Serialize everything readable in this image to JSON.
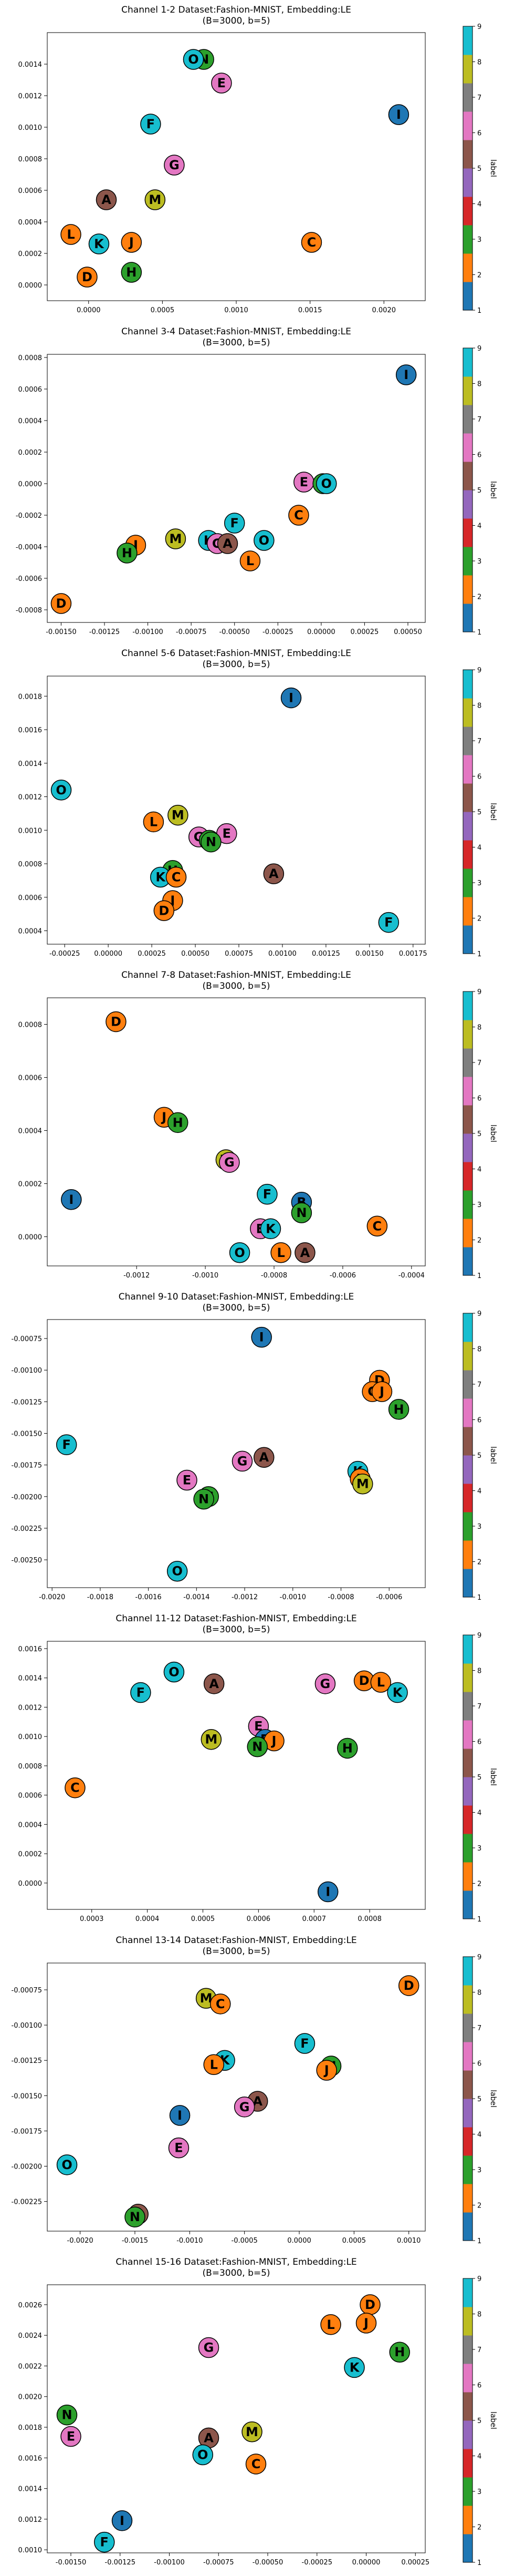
{
  "chart_data": [
    {
      "type": "scatter",
      "title": "Channel 1-2 Dataset:Fashion-MNIST, Embedding:LE",
      "subtitle": "(B=3000, b=5)",
      "xticks": [
        "0.0000",
        "0.0005",
        "0.0010",
        "0.0015",
        "0.0020"
      ],
      "yticks": [
        "0.0000",
        "0.0002",
        "0.0004",
        "0.0006",
        "0.0008",
        "0.0010",
        "0.0012",
        "0.0014"
      ],
      "xlim": [
        -0.00028,
        0.00228
      ],
      "ylim": [
        -0.0001,
        0.0016
      ],
      "points": [
        {
          "label": "N",
          "x": 0.00078,
          "y": 0.00143,
          "color": "#2ca02c"
        },
        {
          "label": "O",
          "x": 0.00071,
          "y": 0.00143,
          "color": "#17becf"
        },
        {
          "label": "E",
          "x": 0.0009,
          "y": 0.00128,
          "color": "#e377c2"
        },
        {
          "label": "I",
          "x": 0.0021,
          "y": 0.00108,
          "color": "#1f77b4"
        },
        {
          "label": "F",
          "x": 0.00042,
          "y": 0.00102,
          "color": "#17becf"
        },
        {
          "label": "G",
          "x": 0.00058,
          "y": 0.00076,
          "color": "#e377c2"
        },
        {
          "label": "A",
          "x": 0.00012,
          "y": 0.00054,
          "color": "#8c564b"
        },
        {
          "label": "M",
          "x": 0.00045,
          "y": 0.00054,
          "color": "#bcbd22"
        },
        {
          "label": "L",
          "x": -0.00012,
          "y": 0.00032,
          "color": "#ff7f0e"
        },
        {
          "label": "K",
          "x": 7e-05,
          "y": 0.00026,
          "color": "#17becf"
        },
        {
          "label": "J",
          "x": 0.00029,
          "y": 0.00027,
          "color": "#ff7f0e"
        },
        {
          "label": "C",
          "x": 0.00151,
          "y": 0.00027,
          "color": "#ff7f0e"
        },
        {
          "label": "H",
          "x": 0.00029,
          "y": 8e-05,
          "color": "#2ca02c"
        },
        {
          "label": "D",
          "x": -1e-05,
          "y": 5e-05,
          "color": "#ff7f0e"
        }
      ]
    },
    {
      "type": "scatter",
      "title": "Channel 3-4 Dataset:Fashion-MNIST, Embedding:LE",
      "subtitle": "(B=3000, b=5)",
      "xticks": [
        "-0.00150",
        "-0.00125",
        "-0.00100",
        "-0.00075",
        "-0.00050",
        "-0.00025",
        "0.00000",
        "0.00025",
        "0.00050"
      ],
      "yticks": [
        "-0.0008",
        "-0.0006",
        "-0.0004",
        "-0.0002",
        "0.0000",
        "0.0002",
        "0.0004",
        "0.0006",
        "0.0008"
      ],
      "xlim": [
        -0.00158,
        0.0006
      ],
      "ylim": [
        -0.00088,
        0.00082
      ],
      "points": [
        {
          "label": "I",
          "x": 0.00049,
          "y": 0.00069,
          "color": "#1f77b4"
        },
        {
          "label": "E",
          "x": -0.0001,
          "y": 1e-05,
          "color": "#e377c2"
        },
        {
          "label": "N",
          "x": 1e-05,
          "y": 0.0,
          "color": "#2ca02c"
        },
        {
          "label": "O",
          "x": 3e-05,
          "y": 0.0,
          "color": "#17becf"
        },
        {
          "label": "C",
          "x": -0.00013,
          "y": -0.0002,
          "color": "#ff7f0e"
        },
        {
          "label": "F",
          "x": -0.0005,
          "y": -0.00025,
          "color": "#17becf"
        },
        {
          "label": "O",
          "x": -0.00033,
          "y": -0.00036,
          "color": "#17becf"
        },
        {
          "label": "M",
          "x": -0.00084,
          "y": -0.00035,
          "color": "#bcbd22"
        },
        {
          "label": "K",
          "x": -0.00065,
          "y": -0.00036,
          "color": "#17becf"
        },
        {
          "label": "G",
          "x": -0.0006,
          "y": -0.00038,
          "color": "#e377c2"
        },
        {
          "label": "A",
          "x": -0.00054,
          "y": -0.00038,
          "color": "#8c564b"
        },
        {
          "label": "J",
          "x": -0.00107,
          "y": -0.00039,
          "color": "#ff7f0e"
        },
        {
          "label": "H",
          "x": -0.00112,
          "y": -0.00044,
          "color": "#2ca02c"
        },
        {
          "label": "L",
          "x": -0.00041,
          "y": -0.00049,
          "color": "#ff7f0e"
        },
        {
          "label": "D",
          "x": -0.0015,
          "y": -0.00076,
          "color": "#ff7f0e"
        }
      ]
    },
    {
      "type": "scatter",
      "title": "Channel 5-6 Dataset:Fashion-MNIST, Embedding:LE",
      "subtitle": "(B=3000, b=5)",
      "xticks": [
        "-0.00025",
        "0.00000",
        "0.00025",
        "0.00050",
        "0.00075",
        "0.00100",
        "0.00125",
        "0.00150",
        "0.00175"
      ],
      "yticks": [
        "0.0004",
        "0.0006",
        "0.0008",
        "0.0010",
        "0.0012",
        "0.0014",
        "0.0016",
        "0.0018"
      ],
      "xlim": [
        -0.00035,
        0.00182
      ],
      "ylim": [
        0.00032,
        0.00192
      ],
      "points": [
        {
          "label": "I",
          "x": 0.00105,
          "y": 0.00179,
          "color": "#1f77b4"
        },
        {
          "label": "O",
          "x": -0.00027,
          "y": 0.00124,
          "color": "#17becf"
        },
        {
          "label": "L",
          "x": 0.00026,
          "y": 0.00105,
          "color": "#ff7f0e"
        },
        {
          "label": "M",
          "x": 0.0004,
          "y": 0.00109,
          "color": "#bcbd22"
        },
        {
          "label": "E",
          "x": 0.00068,
          "y": 0.00098,
          "color": "#e377c2"
        },
        {
          "label": "G",
          "x": 0.00052,
          "y": 0.00096,
          "color": "#e377c2"
        },
        {
          "label": "B",
          "x": 0.00058,
          "y": 0.00094,
          "color": "#2ca02c"
        },
        {
          "label": "N",
          "x": 0.00059,
          "y": 0.00093,
          "color": "#2ca02c"
        },
        {
          "label": "H",
          "x": 0.00037,
          "y": 0.00076,
          "color": "#2ca02c"
        },
        {
          "label": "A",
          "x": 0.00095,
          "y": 0.00074,
          "color": "#8c564b"
        },
        {
          "label": "K",
          "x": 0.0003,
          "y": 0.00072,
          "color": "#17becf"
        },
        {
          "label": "C",
          "x": 0.00039,
          "y": 0.00072,
          "color": "#ff7f0e"
        },
        {
          "label": "J",
          "x": 0.00037,
          "y": 0.00058,
          "color": "#ff7f0e"
        },
        {
          "label": "D",
          "x": 0.00032,
          "y": 0.00052,
          "color": "#ff7f0e"
        },
        {
          "label": "F",
          "x": 0.00161,
          "y": 0.00045,
          "color": "#17becf"
        }
      ]
    },
    {
      "type": "scatter",
      "title": "Channel 7-8 Dataset:Fashion-MNIST, Embedding:LE",
      "subtitle": "(B=3000, b=5)",
      "xticks": [
        "-0.0012",
        "-0.0010",
        "-0.0008",
        "-0.0006",
        "-0.0004"
      ],
      "yticks": [
        "0.0000",
        "0.0002",
        "0.0004",
        "0.0006",
        "0.0008"
      ],
      "xlim": [
        -0.00146,
        -0.00036
      ],
      "ylim": [
        -0.00011,
        0.0009
      ],
      "points": [
        {
          "label": "D",
          "x": -0.00126,
          "y": 0.00081,
          "color": "#ff7f0e"
        },
        {
          "label": "J",
          "x": -0.00112,
          "y": 0.00045,
          "color": "#ff7f0e"
        },
        {
          "label": "H",
          "x": -0.00108,
          "y": 0.00043,
          "color": "#2ca02c"
        },
        {
          "label": "M",
          "x": -0.00094,
          "y": 0.00029,
          "color": "#bcbd22"
        },
        {
          "label": "G",
          "x": -0.00093,
          "y": 0.00028,
          "color": "#e377c2"
        },
        {
          "label": "I",
          "x": -0.00139,
          "y": 0.00014,
          "color": "#1f77b4"
        },
        {
          "label": "F",
          "x": -0.00082,
          "y": 0.00016,
          "color": "#17becf"
        },
        {
          "label": "B",
          "x": -0.00072,
          "y": 0.00013,
          "color": "#1f77b4"
        },
        {
          "label": "N",
          "x": -0.00072,
          "y": 9e-05,
          "color": "#2ca02c"
        },
        {
          "label": "C",
          "x": -0.0005,
          "y": 4e-05,
          "color": "#ff7f0e"
        },
        {
          "label": "E",
          "x": -0.00084,
          "y": 3e-05,
          "color": "#e377c2"
        },
        {
          "label": "K",
          "x": -0.00081,
          "y": 3e-05,
          "color": "#17becf"
        },
        {
          "label": "O",
          "x": -0.0009,
          "y": -6e-05,
          "color": "#17becf"
        },
        {
          "label": "L",
          "x": -0.00078,
          "y": -6e-05,
          "color": "#ff7f0e"
        },
        {
          "label": "A",
          "x": -0.00071,
          "y": -6e-05,
          "color": "#8c564b"
        }
      ]
    },
    {
      "type": "scatter",
      "title": "Channel 9-10 Dataset:Fashion-MNIST, Embedding:LE",
      "subtitle": "(B=3000, b=5)",
      "xticks": [
        "-0.0020",
        "-0.0018",
        "-0.0016",
        "-0.0014",
        "-0.0012",
        "-0.0010",
        "-0.0008",
        "-0.0006",
        "-0.0004"
      ],
      "yticks": [
        "-0.00250",
        "-0.00225",
        "-0.00200",
        "-0.00175",
        "-0.00150",
        "-0.00125",
        "-0.00100",
        "-0.00075"
      ],
      "xlim": [
        -0.00202,
        -0.00045
      ],
      "ylim": [
        -0.00272,
        -0.0006
      ],
      "points": [
        {
          "label": "I",
          "x": -0.00113,
          "y": -0.00074,
          "color": "#1f77b4"
        },
        {
          "label": "D",
          "x": -0.00064,
          "y": -0.00108,
          "color": "#ff7f0e"
        },
        {
          "label": "C",
          "x": -0.00067,
          "y": -0.00117,
          "color": "#ff7f0e"
        },
        {
          "label": "J",
          "x": -0.00063,
          "y": -0.00117,
          "color": "#ff7f0e"
        },
        {
          "label": "H",
          "x": -0.00056,
          "y": -0.00131,
          "color": "#2ca02c"
        },
        {
          "label": "F",
          "x": -0.00194,
          "y": -0.00159,
          "color": "#17becf"
        },
        {
          "label": "G",
          "x": -0.00121,
          "y": -0.00172,
          "color": "#e377c2"
        },
        {
          "label": "A",
          "x": -0.00112,
          "y": -0.00169,
          "color": "#8c564b"
        },
        {
          "label": "K",
          "x": -0.00073,
          "y": -0.0018,
          "color": "#17becf"
        },
        {
          "label": "E",
          "x": -0.00144,
          "y": -0.00187,
          "color": "#e377c2"
        },
        {
          "label": "L",
          "x": -0.00072,
          "y": -0.00186,
          "color": "#ff7f0e"
        },
        {
          "label": "M",
          "x": -0.00071,
          "y": -0.0019,
          "color": "#bcbd22"
        },
        {
          "label": "H",
          "x": -0.00135,
          "y": -0.002,
          "color": "#2ca02c"
        },
        {
          "label": "N",
          "x": -0.00137,
          "y": -0.00202,
          "color": "#2ca02c"
        },
        {
          "label": "O",
          "x": -0.00148,
          "y": -0.00259,
          "color": "#17becf"
        }
      ]
    },
    {
      "type": "scatter",
      "title": "Channel 11-12 Dataset:Fashion-MNIST, Embedding:LE",
      "subtitle": "(B=3000, b=5)",
      "xticks": [
        "0.0003",
        "0.0004",
        "0.0005",
        "0.0006",
        "0.0007",
        "0.0008"
      ],
      "yticks": [
        "0.0000",
        "0.0002",
        "0.0004",
        "0.0006",
        "0.0008",
        "0.0010",
        "0.0012",
        "0.0014",
        "0.0016"
      ],
      "xlim": [
        0.00022,
        0.0009
      ],
      "ylim": [
        -0.00018,
        0.00165
      ],
      "points": [
        {
          "label": "O",
          "x": 0.000448,
          "y": 0.00144,
          "color": "#17becf"
        },
        {
          "label": "F",
          "x": 0.000388,
          "y": 0.0013,
          "color": "#17becf"
        },
        {
          "label": "A",
          "x": 0.00052,
          "y": 0.00136,
          "color": "#8c564b"
        },
        {
          "label": "G",
          "x": 0.00072,
          "y": 0.00136,
          "color": "#e377c2"
        },
        {
          "label": "D",
          "x": 0.00079,
          "y": 0.00138,
          "color": "#ff7f0e"
        },
        {
          "label": "L",
          "x": 0.00082,
          "y": 0.00137,
          "color": "#ff7f0e"
        },
        {
          "label": "K",
          "x": 0.00085,
          "y": 0.0013,
          "color": "#17becf"
        },
        {
          "label": "E",
          "x": 0.0006,
          "y": 0.00107,
          "color": "#e377c2"
        },
        {
          "label": "M",
          "x": 0.000515,
          "y": 0.00098,
          "color": "#bcbd22"
        },
        {
          "label": "B",
          "x": 0.000612,
          "y": 0.00098,
          "color": "#1f77b4"
        },
        {
          "label": "J",
          "x": 0.000628,
          "y": 0.00097,
          "color": "#ff7f0e"
        },
        {
          "label": "N",
          "x": 0.000598,
          "y": 0.00093,
          "color": "#2ca02c"
        },
        {
          "label": "H",
          "x": 0.00076,
          "y": 0.00092,
          "color": "#2ca02c"
        },
        {
          "label": "C",
          "x": 0.00027,
          "y": 0.00065,
          "color": "#ff7f0e"
        },
        {
          "label": "I",
          "x": 0.000725,
          "y": -6e-05,
          "color": "#1f77b4"
        }
      ]
    },
    {
      "type": "scatter",
      "title": "Channel 13-14 Dataset:Fashion-MNIST, Embedding:LE",
      "subtitle": "(B=3000, b=5)",
      "xticks": [
        "-0.0020",
        "-0.0015",
        "-0.0010",
        "-0.0005",
        "0.0000",
        "0.0005",
        "0.0010"
      ],
      "yticks": [
        "-0.00225",
        "-0.00200",
        "-0.00175",
        "-0.00150",
        "-0.00125",
        "-0.00100",
        "-0.00075"
      ],
      "xlim": [
        -0.0023,
        0.00115
      ],
      "ylim": [
        -0.00246,
        -0.00056
      ],
      "points": [
        {
          "label": "D",
          "x": 0.001,
          "y": -0.00072,
          "color": "#ff7f0e"
        },
        {
          "label": "M",
          "x": -0.00085,
          "y": -0.00081,
          "color": "#bcbd22"
        },
        {
          "label": "C",
          "x": -0.00072,
          "y": -0.00085,
          "color": "#ff7f0e"
        },
        {
          "label": "F",
          "x": 5e-05,
          "y": -0.00113,
          "color": "#17becf"
        },
        {
          "label": "K",
          "x": -0.00068,
          "y": -0.00125,
          "color": "#17becf"
        },
        {
          "label": "L",
          "x": -0.00078,
          "y": -0.00128,
          "color": "#ff7f0e"
        },
        {
          "label": "H",
          "x": 0.00029,
          "y": -0.00129,
          "color": "#2ca02c"
        },
        {
          "label": "J",
          "x": 0.00025,
          "y": -0.00132,
          "color": "#ff7f0e"
        },
        {
          "label": "A",
          "x": -0.00038,
          "y": -0.00154,
          "color": "#8c564b"
        },
        {
          "label": "G",
          "x": -0.0005,
          "y": -0.00158,
          "color": "#e377c2"
        },
        {
          "label": "I",
          "x": -0.00109,
          "y": -0.00164,
          "color": "#1f77b4"
        },
        {
          "label": "E",
          "x": -0.0011,
          "y": -0.00187,
          "color": "#e377c2"
        },
        {
          "label": "O",
          "x": -0.00212,
          "y": -0.00199,
          "color": "#17becf"
        },
        {
          "label": "B",
          "x": -0.00147,
          "y": -0.00234,
          "color": "#8c564b"
        },
        {
          "label": "N",
          "x": -0.0015,
          "y": -0.00236,
          "color": "#2ca02c"
        }
      ]
    },
    {
      "type": "scatter",
      "title": "Channel 15-16 Dataset:Fashion-MNIST, Embedding:LE",
      "subtitle": "(B=3000, b=5)",
      "xticks": [
        "-0.00150",
        "-0.00125",
        "-0.00100",
        "-0.00075",
        "-0.00050",
        "-0.00025",
        "0.00000",
        "0.00025"
      ],
      "yticks": [
        "0.0010",
        "0.0012",
        "0.0014",
        "0.0016",
        "0.0018",
        "0.0020",
        "0.0022",
        "0.0024",
        "0.0026"
      ],
      "xlim": [
        -0.00162,
        0.0003
      ],
      "ylim": [
        0.00098,
        0.00273
      ],
      "points": [
        {
          "label": "D",
          "x": 2e-05,
          "y": 0.0026,
          "color": "#ff7f0e"
        },
        {
          "label": "L",
          "x": -0.00018,
          "y": 0.00247,
          "color": "#ff7f0e"
        },
        {
          "label": "J",
          "x": 0.0,
          "y": 0.00248,
          "color": "#ff7f0e"
        },
        {
          "label": "G",
          "x": -0.0008,
          "y": 0.00232,
          "color": "#e377c2"
        },
        {
          "label": "H",
          "x": 0.00017,
          "y": 0.00229,
          "color": "#2ca02c"
        },
        {
          "label": "K",
          "x": -6e-05,
          "y": 0.00219,
          "color": "#17becf"
        },
        {
          "label": "N",
          "x": -0.00152,
          "y": 0.00188,
          "color": "#2ca02c"
        },
        {
          "label": "E",
          "x": -0.0015,
          "y": 0.00174,
          "color": "#e377c2"
        },
        {
          "label": "A",
          "x": -0.0008,
          "y": 0.00173,
          "color": "#8c564b"
        },
        {
          "label": "M",
          "x": -0.00058,
          "y": 0.00177,
          "color": "#bcbd22"
        },
        {
          "label": "O",
          "x": -0.00083,
          "y": 0.00162,
          "color": "#17becf"
        },
        {
          "label": "C",
          "x": -0.00056,
          "y": 0.00156,
          "color": "#ff7f0e"
        },
        {
          "label": "I",
          "x": -0.00124,
          "y": 0.00119,
          "color": "#1f77b4"
        },
        {
          "label": "F",
          "x": -0.00133,
          "y": 0.00105,
          "color": "#17becf"
        }
      ]
    }
  ],
  "colorbar": {
    "label": "label",
    "ticks": [
      "1",
      "2",
      "3",
      "4",
      "5",
      "6",
      "7",
      "8",
      "9"
    ],
    "colors": [
      "#1f77b4",
      "#ff7f0e",
      "#2ca02c",
      "#d62728",
      "#9467bd",
      "#8c564b",
      "#e377c2",
      "#7f7f7f",
      "#bcbd22",
      "#17becf"
    ]
  }
}
